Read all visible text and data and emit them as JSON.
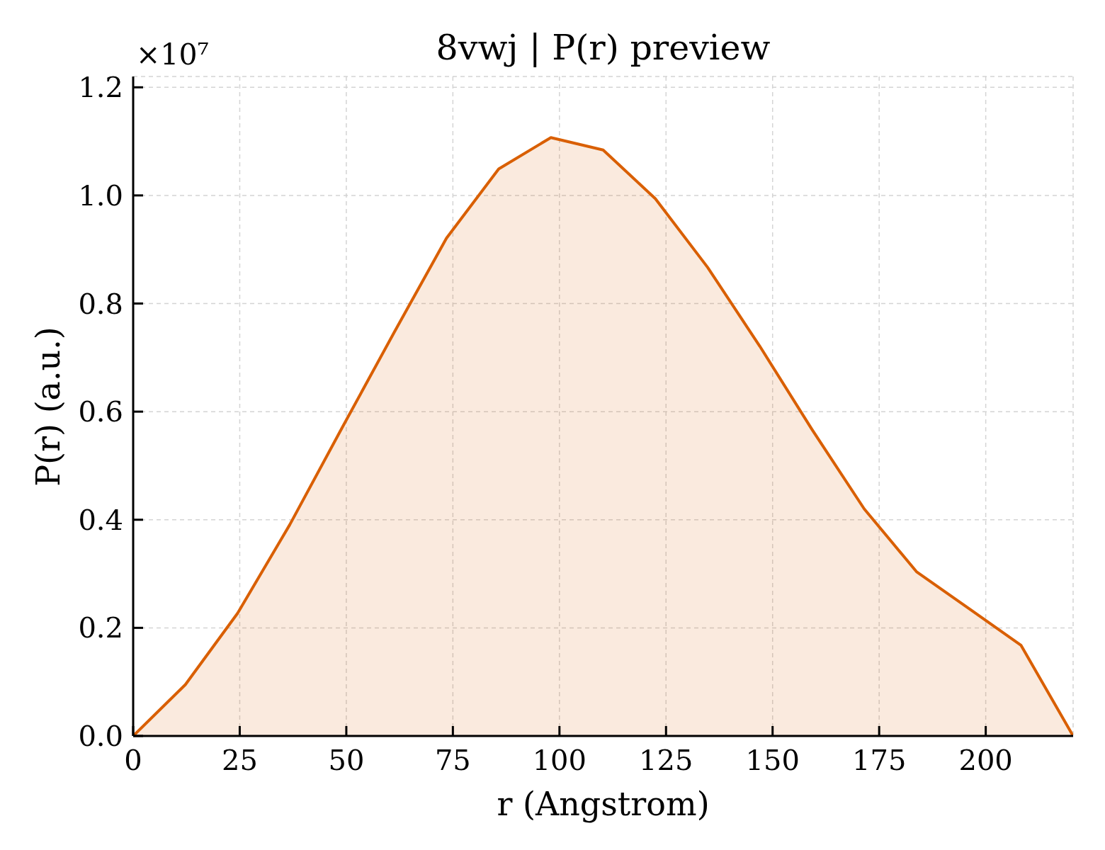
{
  "chart_data": {
    "type": "area",
    "title": "8vwj | P(r) preview",
    "xlabel": "r (Angstrom)",
    "ylabel": "P(r) (a.u.)",
    "annotations": [
      "×10⁷"
    ],
    "x": [
      0,
      12.25,
      24.5,
      36.75,
      49,
      61.25,
      73.5,
      85.75,
      98,
      110.25,
      122.5,
      134.75,
      147,
      159.25,
      171.5,
      183.75,
      196,
      208.25,
      220.5
    ],
    "values": [
      0,
      0.095,
      0.227,
      0.391,
      0.57,
      0.747,
      0.921,
      1.049,
      1.107,
      1.084,
      0.994,
      0.867,
      0.721,
      0.567,
      0.42,
      0.304,
      0.236,
      0.168,
      0
    ],
    "color": "#d95f02",
    "xlim": [
      0,
      220.5
    ],
    "xticks": [
      0,
      25,
      50,
      75,
      100,
      125,
      150,
      175,
      200
    ],
    "ylim": [
      0,
      1.22
    ],
    "yticks": [
      {
        "value": 0,
        "label": "0.0"
      },
      0.2,
      0.4,
      0.6,
      0.8,
      {
        "value": 1,
        "label": "1.0"
      },
      1.2
    ],
    "grid": true
  }
}
